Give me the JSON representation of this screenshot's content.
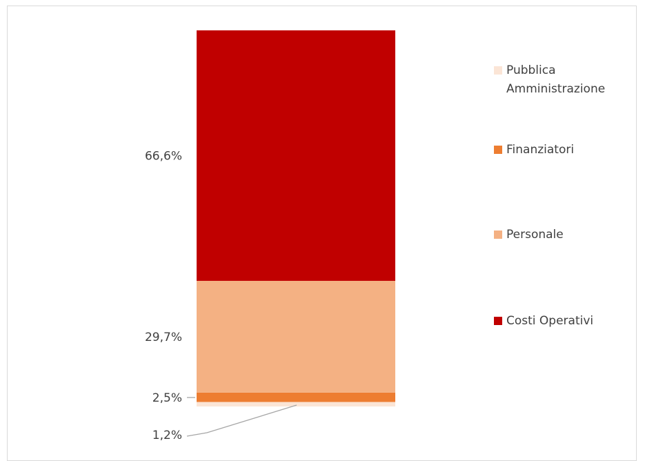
{
  "chart_data": {
    "type": "bar",
    "stacked": true,
    "categories": [
      ""
    ],
    "series": [
      {
        "name": "Pubblica Amministrazione",
        "values": [
          1.2
        ],
        "label": "1,2%",
        "color": "#fbe5d6"
      },
      {
        "name": "Finanziatori",
        "values": [
          2.5
        ],
        "label": "2,5%",
        "color": "#ed7d31"
      },
      {
        "name": "Personale",
        "values": [
          29.7
        ],
        "label": "29,7%",
        "color": "#f4b183"
      },
      {
        "name": "Costi Operativi",
        "values": [
          66.6
        ],
        "label": "66,6%",
        "color": "#c00000"
      }
    ],
    "legend": {
      "position": "right",
      "entries": [
        {
          "line1": "Pubblica",
          "line2": "Amministrazione",
          "color": "#fbe5d6"
        },
        {
          "line1": "Finanziatori",
          "line2": "",
          "color": "#ed7d31"
        },
        {
          "line1": "Personale",
          "line2": "",
          "color": "#f4b183"
        },
        {
          "line1": "Costi Operativi",
          "line2": "",
          "color": "#c00000"
        }
      ]
    },
    "title": "",
    "xlabel": "",
    "ylabel": "",
    "grid": false
  }
}
